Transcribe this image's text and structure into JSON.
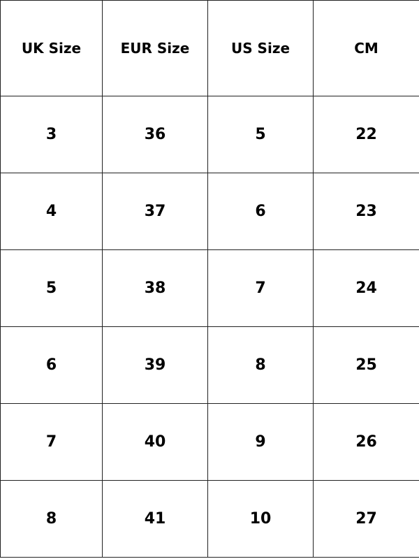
{
  "size_table": {
    "headers": [
      "UK Size",
      "EUR Size",
      "US Size",
      "CM"
    ],
    "rows": [
      [
        "3",
        "36",
        "5",
        "22"
      ],
      [
        "4",
        "37",
        "6",
        "23"
      ],
      [
        "5",
        "38",
        "7",
        "24"
      ],
      [
        "6",
        "39",
        "8",
        "25"
      ],
      [
        "7",
        "40",
        "9",
        "26"
      ],
      [
        "8",
        "41",
        "10",
        "27"
      ]
    ]
  }
}
